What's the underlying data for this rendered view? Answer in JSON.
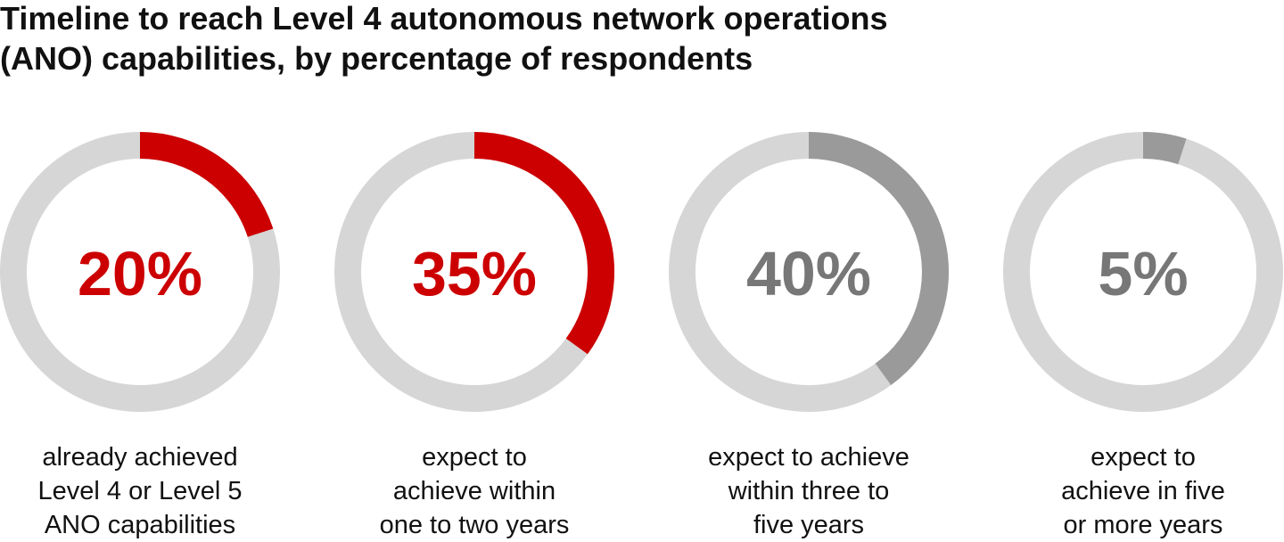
{
  "chart_data": {
    "type": "donut",
    "title": "Timeline to reach Level 4 autonomous network operations\n(ANO) capabilities, by percentage of respondents",
    "categories": [
      "already achieved\nLevel 4 or Level 5\nANO capabilities",
      "expect to\nachieve within\none to two years",
      "expect to achieve\nwithin three to\nfive years",
      "expect to\nachieve in five\nor more years"
    ],
    "values": [
      20,
      35,
      40,
      5
    ],
    "value_labels": [
      "20%",
      "35%",
      "40%",
      "5%"
    ],
    "colors": [
      "#cc0000",
      "#cc0000",
      "#9a9a9a",
      "#9a9a9a"
    ],
    "label_colors": [
      "#cc0000",
      "#cc0000",
      "#777777",
      "#777777"
    ],
    "track_color": "#d6d6d6",
    "ylim": [
      0,
      100
    ]
  }
}
